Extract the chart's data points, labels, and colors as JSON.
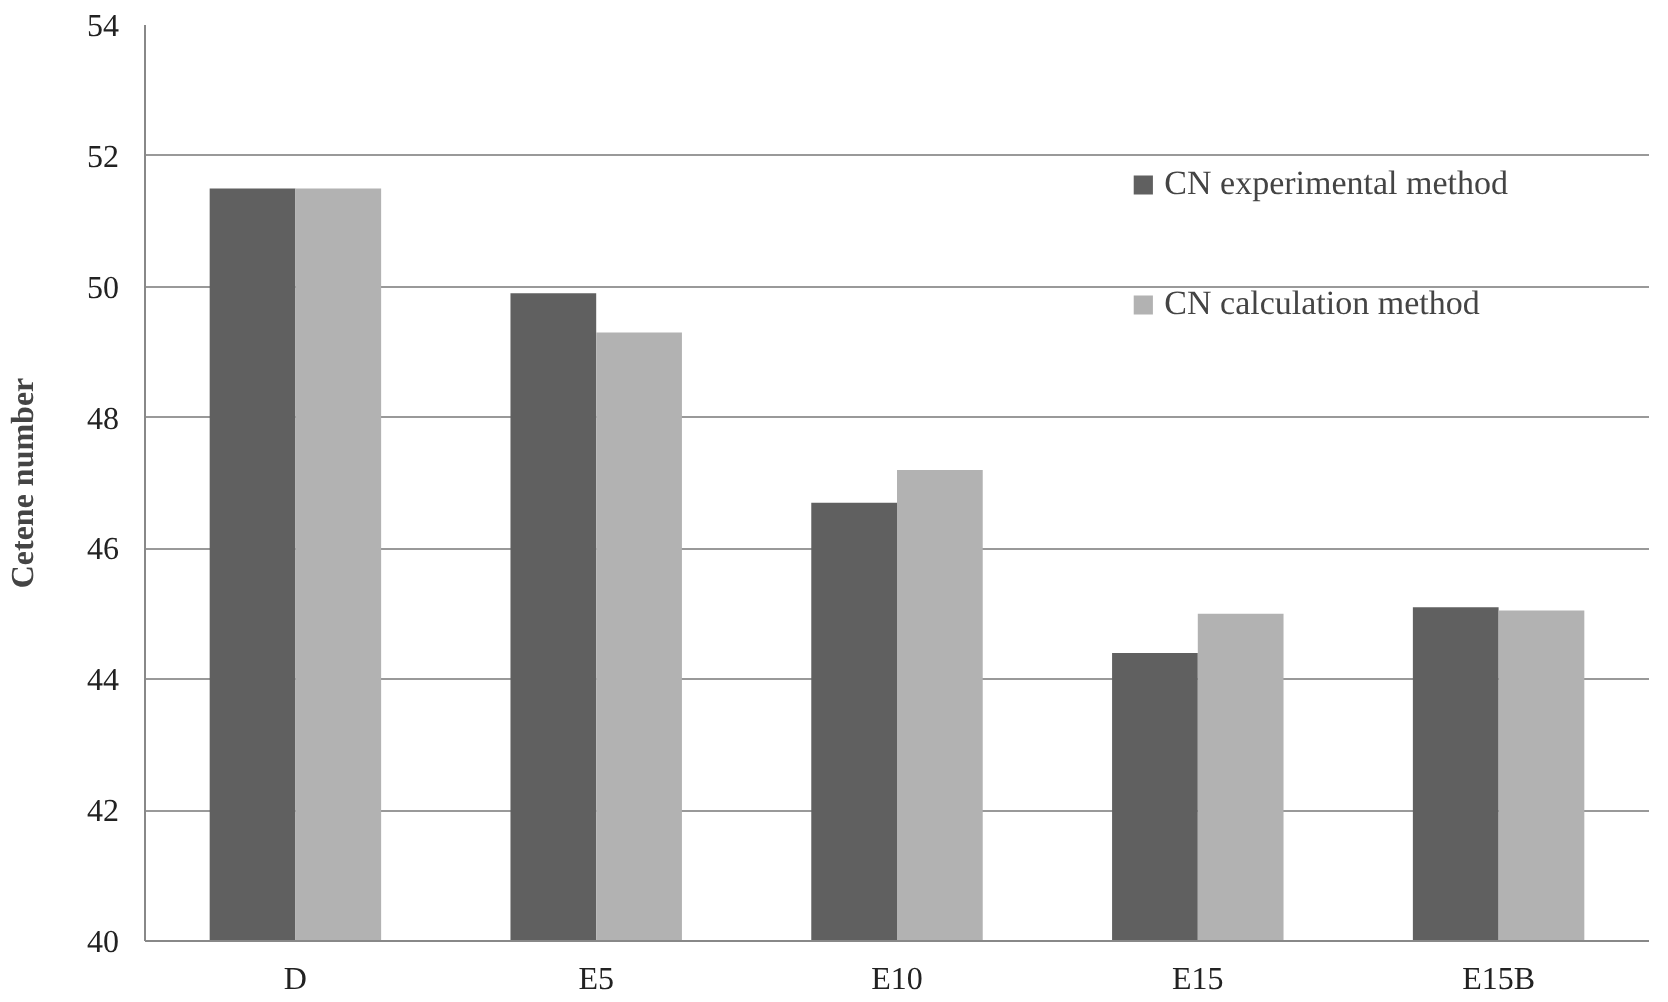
{
  "chart_data": {
    "type": "bar",
    "ylabel": "Cetene number",
    "categories": [
      "D",
      "E5",
      "E10",
      "E15",
      "E15B"
    ],
    "series": [
      {
        "name": "CN experimental method",
        "color": "#606060",
        "values": [
          51.5,
          49.9,
          46.7,
          44.4,
          45.1
        ]
      },
      {
        "name": "CN calculation method",
        "color": "#b2b2b2",
        "values": [
          51.5,
          49.3,
          47.2,
          45.0,
          45.05
        ]
      }
    ],
    "ylim": [
      40,
      54
    ],
    "yticks": [
      40,
      42,
      44,
      46,
      48,
      50,
      52,
      54
    ],
    "grid": "y",
    "legend": "top right"
  }
}
